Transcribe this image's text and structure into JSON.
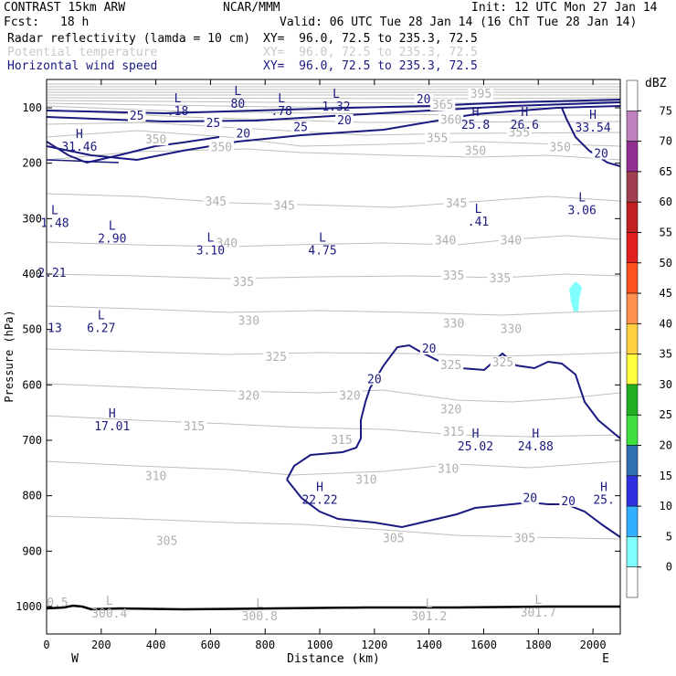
{
  "header": {
    "model": "CONTRAST 15km ARW",
    "org": "NCAR/MMM",
    "init": "Init: 12 UTC Mon 27 Jan 14",
    "fcst_label": "Fcst:",
    "fcst_value": "18 h",
    "valid": "Valid: 06 UTC Tue 28 Jan 14 (16 ChT Tue 28 Jan 14)"
  },
  "fields": [
    {
      "name": "Radar reflectivity (lamda = 10 cm)",
      "xy": "XY=  96.0, 72.5 to 235.3, 72.5",
      "color": "#000000"
    },
    {
      "name": "Potential temperature",
      "xy": "XY=  96.0, 72.5 to 235.3, 72.5",
      "color": "#c8c8c8"
    },
    {
      "name": "Horizontal wind speed",
      "xy": "XY=  96.0, 72.5 to 235.3, 72.5",
      "color": "#1a1a80"
    }
  ],
  "chart_data": {
    "type": "cross-section",
    "xlabel": "Distance (km)",
    "ylabel": "Pressure (hPa)",
    "xlim": [
      0,
      2100
    ],
    "ylim": [
      1050,
      50
    ],
    "x_ticks": [
      0,
      200,
      400,
      600,
      800,
      1000,
      1200,
      1400,
      1600,
      1800,
      2000
    ],
    "y_ticks": [
      100,
      200,
      300,
      400,
      500,
      600,
      700,
      800,
      900,
      1000
    ],
    "x_end_labels": {
      "west": "W",
      "east": "E"
    },
    "colorbar": {
      "unit": "dBZ",
      "levels": [
        "75",
        "70",
        "65",
        "60",
        "55",
        "50",
        "45",
        "40",
        "35",
        "30",
        "25",
        "20",
        "15",
        "10",
        "5",
        "0"
      ],
      "colors": [
        "#ffffff",
        "#c080c0",
        "#903090",
        "#a04050",
        "#c02020",
        "#e02020",
        "#ff5020",
        "#ff9050",
        "#ffd040",
        "#ffff40",
        "#20b020",
        "#40e040",
        "#3070b0",
        "#3030e0",
        "#30b0ff",
        "#80ffff",
        "#ffffff"
      ]
    },
    "theta_labels": [
      {
        "text": "395",
        "x": 1590,
        "p": 80
      },
      {
        "text": "365",
        "x": 1450,
        "p": 100
      },
      {
        "text": "360",
        "x": 1480,
        "p": 127
      },
      {
        "text": "355",
        "x": 1430,
        "p": 160
      },
      {
        "text": "355",
        "x": 1730,
        "p": 150
      },
      {
        "text": "350",
        "x": 400,
        "p": 163
      },
      {
        "text": "350",
        "x": 640,
        "p": 177
      },
      {
        "text": "350",
        "x": 1570,
        "p": 183
      },
      {
        "text": "350",
        "x": 1880,
        "p": 177
      },
      {
        "text": "345",
        "x": 620,
        "p": 275
      },
      {
        "text": "345",
        "x": 870,
        "p": 282
      },
      {
        "text": "345",
        "x": 1500,
        "p": 278
      },
      {
        "text": "340",
        "x": 660,
        "p": 350
      },
      {
        "text": "340",
        "x": 1460,
        "p": 345
      },
      {
        "text": "340",
        "x": 1700,
        "p": 345
      },
      {
        "text": "335",
        "x": 720,
        "p": 420
      },
      {
        "text": "335",
        "x": 1490,
        "p": 408
      },
      {
        "text": "335",
        "x": 1660,
        "p": 413
      },
      {
        "text": "330",
        "x": 740,
        "p": 490
      },
      {
        "text": "330",
        "x": 1490,
        "p": 495
      },
      {
        "text": "330",
        "x": 1700,
        "p": 505
      },
      {
        "text": "325",
        "x": 840,
        "p": 555
      },
      {
        "text": "325",
        "x": 1480,
        "p": 570
      },
      {
        "text": "325",
        "x": 1670,
        "p": 565
      },
      {
        "text": "320",
        "x": 740,
        "p": 625
      },
      {
        "text": "320",
        "x": 1110,
        "p": 625
      },
      {
        "text": "320",
        "x": 1480,
        "p": 650
      },
      {
        "text": "315",
        "x": 540,
        "p": 680
      },
      {
        "text": "315",
        "x": 1080,
        "p": 705
      },
      {
        "text": "315",
        "x": 1490,
        "p": 690
      },
      {
        "text": "310",
        "x": 400,
        "p": 770
      },
      {
        "text": "310",
        "x": 1170,
        "p": 777
      },
      {
        "text": "310",
        "x": 1470,
        "p": 757
      },
      {
        "text": "305",
        "x": 440,
        "p": 887
      },
      {
        "text": "305",
        "x": 1270,
        "p": 882
      },
      {
        "text": "305",
        "x": 1750,
        "p": 882
      }
    ],
    "theta_extrema": [
      {
        "mark": "L",
        "value": "300.4",
        "x": 230,
        "p": 1000
      },
      {
        "mark": "L",
        "value": "300.8",
        "x": 780,
        "p": 1005
      },
      {
        "mark": "L",
        "value": "301.2",
        "x": 1400,
        "p": 1005
      },
      {
        "mark": "L",
        "value": "301.7",
        "x": 1800,
        "p": 998
      },
      {
        "mark": "",
        "value": "0.5",
        "x": 40,
        "p": 980
      }
    ],
    "wind_labels": [
      {
        "text": "25",
        "x": 330,
        "p": 120
      },
      {
        "text": "25",
        "x": 610,
        "p": 133
      },
      {
        "text": "25",
        "x": 930,
        "p": 140
      },
      {
        "text": "20",
        "x": 1090,
        "p": 128
      },
      {
        "text": "20",
        "x": 720,
        "p": 152
      },
      {
        "text": "20",
        "x": 1380,
        "p": 90
      },
      {
        "text": "20",
        "x": 2030,
        "p": 188
      },
      {
        "text": "20",
        "x": 1400,
        "p": 540
      },
      {
        "text": "20",
        "x": 1200,
        "p": 595
      },
      {
        "text": "20",
        "x": 1770,
        "p": 810
      },
      {
        "text": "20",
        "x": 1910,
        "p": 815
      }
    ],
    "wind_extrema": [
      {
        "mark": "L",
        "value": ".18",
        "x": 480,
        "p": 93
      },
      {
        "mark": "L",
        "value": "80",
        "x": 700,
        "p": 80
      },
      {
        "mark": "L",
        "value": ".78",
        "x": 860,
        "p": 93
      },
      {
        "mark": "L",
        "value": "1.32",
        "x": 1060,
        "p": 85
      },
      {
        "mark": "H",
        "value": "25.8",
        "x": 1570,
        "p": 118
      },
      {
        "mark": "H",
        "value": "26.6",
        "x": 1750,
        "p": 118
      },
      {
        "mark": "H",
        "value": "33.54",
        "x": 2000,
        "p": 123
      },
      {
        "mark": "H",
        "value": "31.46",
        "x": 120,
        "p": 158
      },
      {
        "mark": "L",
        "value": "1.48",
        "x": 30,
        "p": 295
      },
      {
        "mark": "L",
        "value": "3.06",
        "x": 1960,
        "p": 272
      },
      {
        "mark": "L",
        "value": ".41",
        "x": 1580,
        "p": 293
      },
      {
        "mark": "L",
        "value": "2.90",
        "x": 240,
        "p": 323
      },
      {
        "mark": "L",
        "value": "3.10",
        "x": 600,
        "p": 345
      },
      {
        "mark": "L",
        "value": "4.75",
        "x": 1010,
        "p": 345
      },
      {
        "mark": "",
        "value": "2.21",
        "x": 20,
        "p": 385
      },
      {
        "mark": "L",
        "value": "6.27",
        "x": 200,
        "p": 485
      },
      {
        "mark": "",
        "value": "13",
        "x": 30,
        "p": 485
      },
      {
        "mark": "H",
        "value": "17.01",
        "x": 240,
        "p": 662
      },
      {
        "mark": "H",
        "value": "25.02",
        "x": 1570,
        "p": 698
      },
      {
        "mark": "H",
        "value": "24.88",
        "x": 1790,
        "p": 698
      },
      {
        "mark": "H",
        "value": "22.22",
        "x": 1000,
        "p": 795
      },
      {
        "mark": "H",
        "value": "25.",
        "x": 2040,
        "p": 795
      }
    ]
  }
}
